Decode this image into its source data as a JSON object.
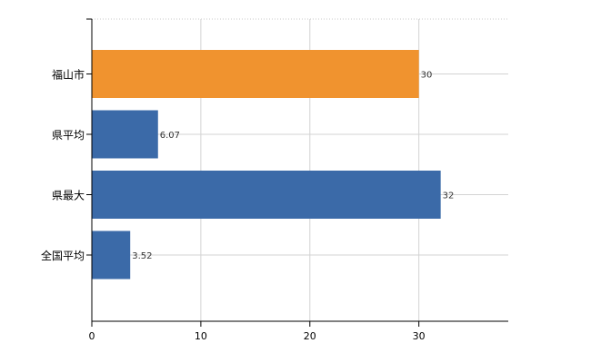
{
  "chart_data": {
    "type": "bar",
    "orientation": "horizontal",
    "categories": [
      "福山市",
      "県平均",
      "県最大",
      "全国平均"
    ],
    "values": [
      30,
      6.07,
      32,
      3.52
    ],
    "data_labels": [
      "30",
      "6.07",
      "32",
      "3.52"
    ],
    "bar_colors": [
      "#f0932f",
      "#3b6aa8",
      "#3b6aa8",
      "#3b6aa8"
    ],
    "xlim": [
      0,
      38.2
    ],
    "xticks": [
      0,
      10,
      20,
      30
    ],
    "xtick_labels": [
      "0",
      "10",
      "20",
      "30"
    ],
    "grid": true,
    "legend": "none",
    "title": "",
    "xlabel": "",
    "ylabel": ""
  }
}
